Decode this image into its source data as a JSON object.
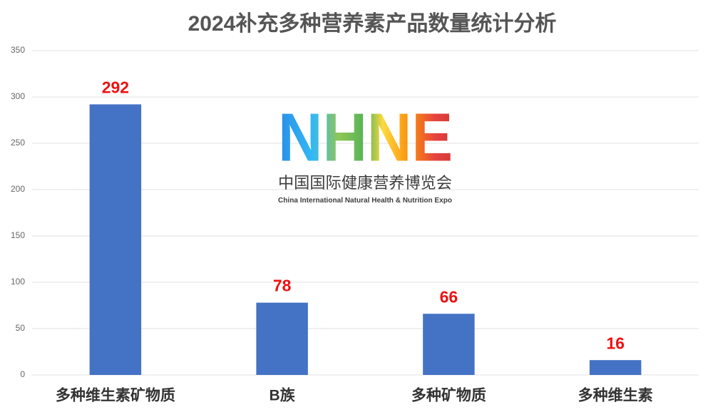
{
  "chart_data": {
    "type": "bar",
    "title": "2024补充多种营养素产品数量统计分析",
    "categories": [
      "多种维生素矿物质",
      "B族",
      "多种矿物质",
      "多种维生素"
    ],
    "values": [
      292,
      78,
      66,
      16
    ],
    "color": "#4472c4",
    "value_label_color": "#ee1111",
    "ylim": [
      0,
      350
    ],
    "yticks": [
      0,
      50,
      100,
      150,
      200,
      250,
      300,
      350
    ],
    "grid": true,
    "logo": {
      "mark": "NHNE",
      "name": "中国国际健康营养博览会",
      "caption": "China International Natural Health & Nutrition Expo"
    }
  }
}
